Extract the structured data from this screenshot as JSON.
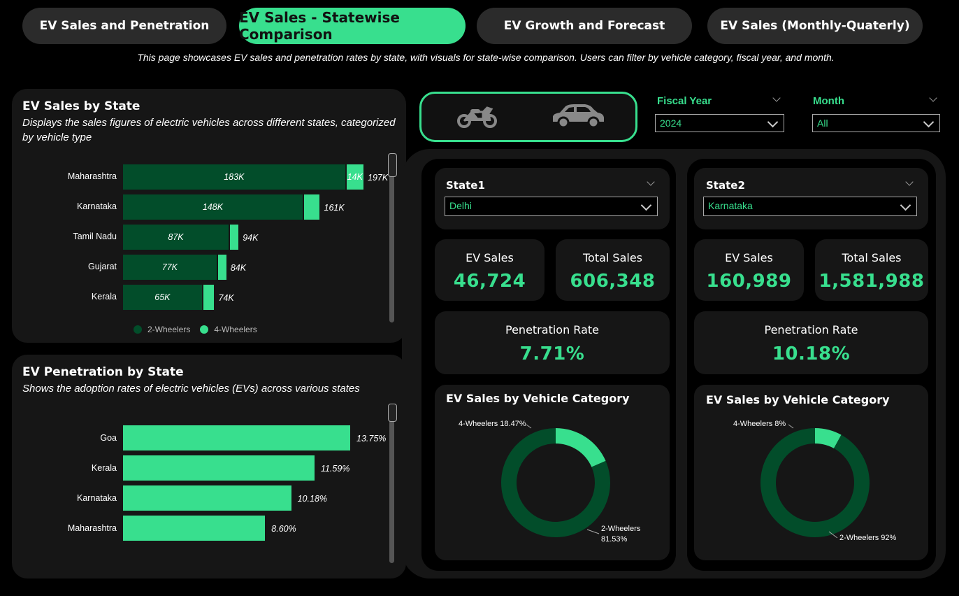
{
  "tabs": [
    {
      "label": "EV Sales and Penetration"
    },
    {
      "label": "EV Sales - Statewise Comparison"
    },
    {
      "label": "EV Growth and Forecast"
    },
    {
      "label": "EV Sales (Monthly-Quaterly)"
    }
  ],
  "subtitle": "This page showcases EV sales and penetration rates by state, with visuals for state-wise comparison. Users can filter by vehicle category, fiscal year, and month.",
  "sales_panel": {
    "title": "EV Sales by State",
    "description": "Displays the sales figures of electric vehicles across different states, categorized by vehicle type",
    "legend": [
      "2-Wheelers",
      "4-Wheelers"
    ]
  },
  "penetration_panel": {
    "title": "EV Penetration by State",
    "description": "Shows the adoption rates of electric vehicles (EVs) across various states"
  },
  "filters": {
    "fiscal_year_label": "Fiscal Year",
    "fiscal_year_value": "2024",
    "month_label": "Month",
    "month_value": "All",
    "vehicle_icons": [
      "motorcycle-icon",
      "car-icon"
    ]
  },
  "state1": {
    "label": "State1",
    "value": "Delhi",
    "ev_sales_label": "EV Sales",
    "ev_sales": "46,724",
    "total_sales_label": "Total Sales",
    "total_sales": "606,348",
    "penetration_label": "Penetration Rate",
    "penetration": "7.71%",
    "donut_title": "EV Sales by Vehicle Category",
    "four_label": "4-Wheelers 18.47%",
    "two_label_1": "2-Wheelers",
    "two_label_2": "81.53%"
  },
  "state2": {
    "label": "State2",
    "value": "Karnataka",
    "ev_sales_label": "EV Sales",
    "ev_sales": "160,989",
    "total_sales_label": "Total Sales",
    "total_sales": "1,581,988",
    "penetration_label": "Penetration Rate",
    "penetration": "10.18%",
    "donut_title": "EV Sales by Vehicle Category",
    "four_label": "4-Wheelers 8%",
    "two_label": "2-Wheelers 92%"
  },
  "colors": {
    "accent": "#38df8e",
    "dark_green": "#024d2a",
    "panel": "#161616",
    "background": "#000000"
  },
  "chart_data": [
    {
      "type": "bar",
      "orientation": "horizontal",
      "stacked": true,
      "title": "EV Sales by State",
      "categories": [
        "Maharashtra",
        "Karnataka",
        "Tamil Nadu",
        "Gujarat",
        "Kerala"
      ],
      "series": [
        {
          "name": "2-Wheelers",
          "values": [
            183000,
            148000,
            87000,
            77000,
            65000
          ],
          "labels": [
            "183K",
            "148K",
            "87K",
            "77K",
            "65K"
          ],
          "color": "#024d2a"
        },
        {
          "name": "4-Wheelers",
          "values": [
            14000,
            13000,
            7000,
            7000,
            9000
          ],
          "labels": [
            "14K",
            "",
            "",
            "",
            ""
          ],
          "color": "#38df8e"
        }
      ],
      "totals": [
        "197K",
        "161K",
        "94K",
        "84K",
        "74K"
      ],
      "legend": "bottom"
    },
    {
      "type": "bar",
      "orientation": "horizontal",
      "title": "EV Penetration by State",
      "categories": [
        "Goa",
        "Kerala",
        "Karnataka",
        "Maharashtra"
      ],
      "values": [
        13.75,
        11.59,
        10.18,
        8.6
      ],
      "labels": [
        "13.75%",
        "11.59%",
        "10.18%",
        "8.60%"
      ],
      "color": "#38df8e"
    },
    {
      "type": "pie",
      "donut": true,
      "title": "EV Sales by Vehicle Category",
      "categories": [
        "4-Wheelers",
        "2-Wheelers"
      ],
      "values": [
        18.47,
        81.53
      ]
    },
    {
      "type": "pie",
      "donut": true,
      "title": "EV Sales by Vehicle Category",
      "categories": [
        "4-Wheelers",
        "2-Wheelers"
      ],
      "values": [
        8,
        92
      ]
    }
  ]
}
